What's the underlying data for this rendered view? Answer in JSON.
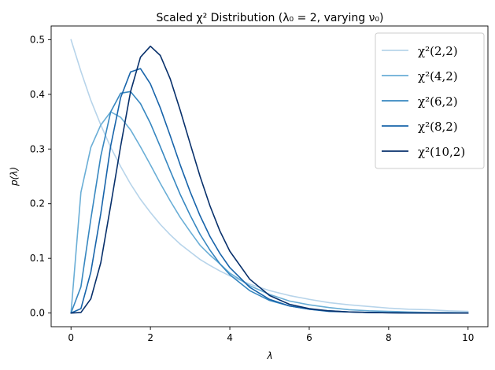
{
  "chart_data": {
    "type": "line",
    "title": "Scaled χ² Distribution (λ₀ = 2, varying ν₀)",
    "xlabel": "λ",
    "ylabel": "p(λ)",
    "xlim": [
      -0.5,
      10.5
    ],
    "ylim": [
      -0.025,
      0.525
    ],
    "xticks": [
      0,
      2,
      4,
      6,
      8,
      10
    ],
    "xtick_labels": [
      "0",
      "2",
      "4",
      "6",
      "8",
      "10"
    ],
    "yticks": [
      0.0,
      0.1,
      0.2,
      0.3,
      0.4,
      0.5
    ],
    "ytick_labels": [
      "0.0",
      "0.1",
      "0.2",
      "0.3",
      "0.4",
      "0.5"
    ],
    "grid": false,
    "legend_position": "top-right",
    "x": [
      0,
      0.25,
      0.5,
      0.75,
      1,
      1.25,
      1.5,
      1.75,
      2,
      2.25,
      2.5,
      2.75,
      3,
      3.25,
      3.5,
      3.75,
      4,
      4.5,
      5,
      5.5,
      6,
      6.5,
      7,
      7.5,
      8,
      8.5,
      9,
      9.5,
      10
    ],
    "series": [
      {
        "name": "χ²(2,2)",
        "color": "#b7d4ea",
        "values": [
          0.5,
          0.442,
          0.389,
          0.344,
          0.303,
          0.268,
          0.236,
          0.208,
          0.184,
          0.162,
          0.143,
          0.126,
          0.112,
          0.098,
          0.087,
          0.077,
          0.068,
          0.053,
          0.041,
          0.032,
          0.025,
          0.019,
          0.015,
          0.012,
          0.009,
          0.007,
          0.006,
          0.004,
          0.003
        ]
      },
      {
        "name": "χ²(4,2)",
        "color": "#6aaed6",
        "values": [
          0,
          0.221,
          0.303,
          0.344,
          0.368,
          0.358,
          0.335,
          0.304,
          0.271,
          0.237,
          0.205,
          0.175,
          0.149,
          0.124,
          0.106,
          0.09,
          0.073,
          0.05,
          0.034,
          0.022,
          0.015,
          0.01,
          0.006,
          0.004,
          0.003,
          0.002,
          0.001,
          0.001,
          0.0005
        ]
      },
      {
        "name": "χ²(6,2)",
        "color": "#3787c0",
        "values": [
          0,
          0.048,
          0.172,
          0.287,
          0.368,
          0.402,
          0.405,
          0.383,
          0.347,
          0.304,
          0.26,
          0.217,
          0.179,
          0.144,
          0.115,
          0.09,
          0.07,
          0.041,
          0.023,
          0.013,
          0.007,
          0.004,
          0.002,
          0.001,
          0.0006,
          0.0003,
          0.0002,
          0.0001,
          0.0
        ]
      },
      {
        "name": "χ²(8,2)",
        "color": "#1864aa",
        "values": [
          0,
          0.008,
          0.075,
          0.182,
          0.306,
          0.394,
          0.441,
          0.447,
          0.419,
          0.375,
          0.324,
          0.271,
          0.222,
          0.178,
          0.14,
          0.109,
          0.083,
          0.047,
          0.025,
          0.013,
          0.007,
          0.003,
          0.002,
          0.001,
          0.0004,
          0.0002,
          0.0001,
          0.0,
          0.0
        ]
      },
      {
        "name": "χ²(10,2)",
        "color": "#08306b",
        "values": [
          0,
          0.001,
          0.026,
          0.092,
          0.197,
          0.305,
          0.405,
          0.468,
          0.488,
          0.471,
          0.428,
          0.371,
          0.31,
          0.25,
          0.196,
          0.15,
          0.113,
          0.062,
          0.032,
          0.016,
          0.008,
          0.004,
          0.002,
          0.001,
          0.0004,
          0.0002,
          0.0001,
          0.0,
          0.0
        ]
      }
    ]
  }
}
